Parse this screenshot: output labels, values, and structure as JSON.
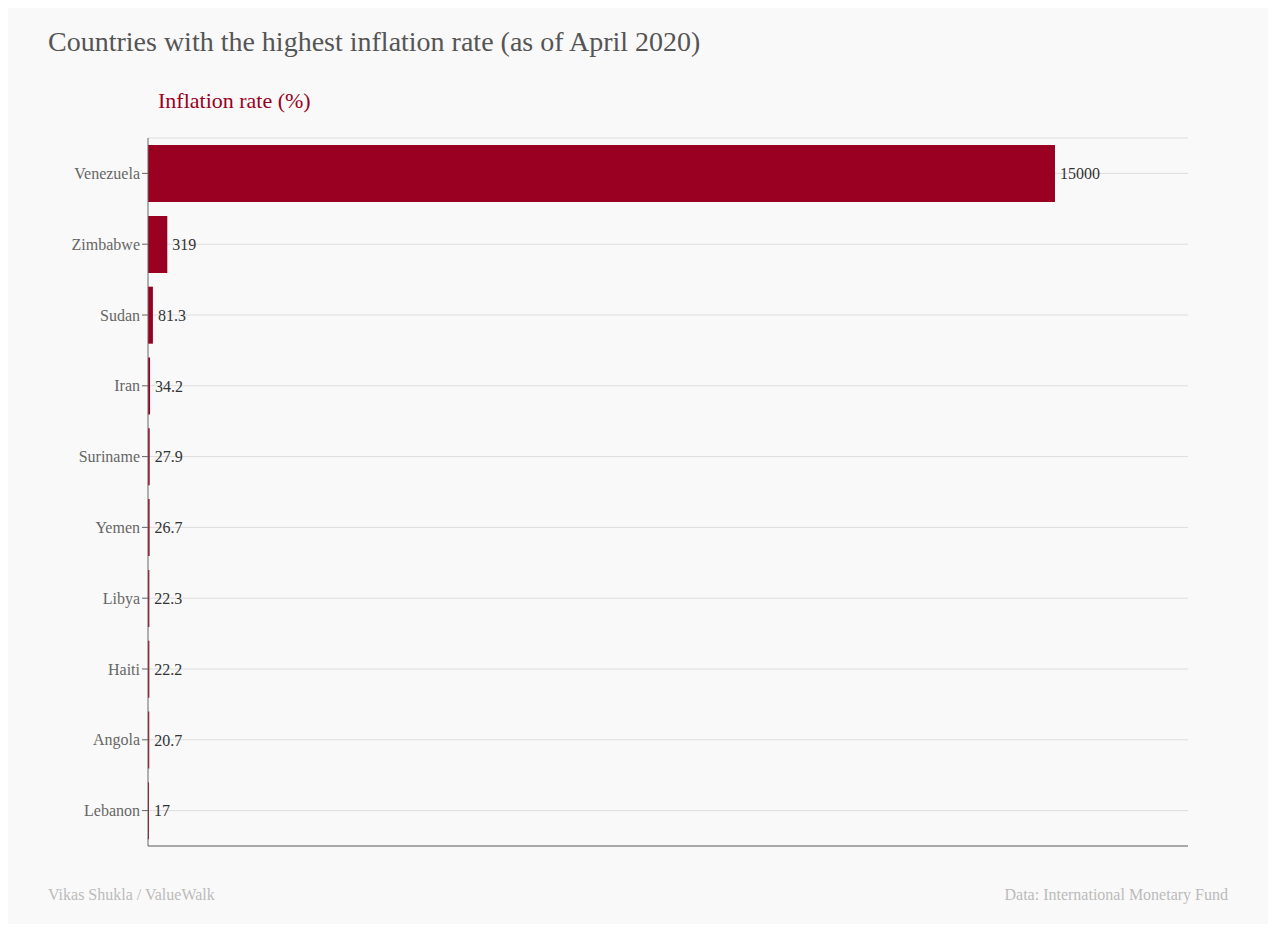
{
  "chart_data": {
    "type": "bar",
    "title": "Countries with the highest inflation rate (as of April 2020)",
    "xlabel": "Inflation rate (%)",
    "categories": [
      "Venezuela",
      "Zimbabwe",
      "Sudan",
      "Iran",
      "Suriname",
      "Yemen",
      "Libya",
      "Haiti",
      "Angola",
      "Lebanon"
    ],
    "values": [
      15000,
      319,
      81.3,
      34.2,
      27.9,
      26.7,
      22.3,
      22.2,
      20.7,
      17
    ],
    "color": "#990021",
    "orientation": "horizontal",
    "xlim": [
      0,
      17200
    ],
    "grid": true,
    "data_labels": true,
    "tick_labels": "y",
    "annotations": [
      "Vikas Shukla / ValueWalk",
      "Data: International Monetary Fund"
    ]
  }
}
